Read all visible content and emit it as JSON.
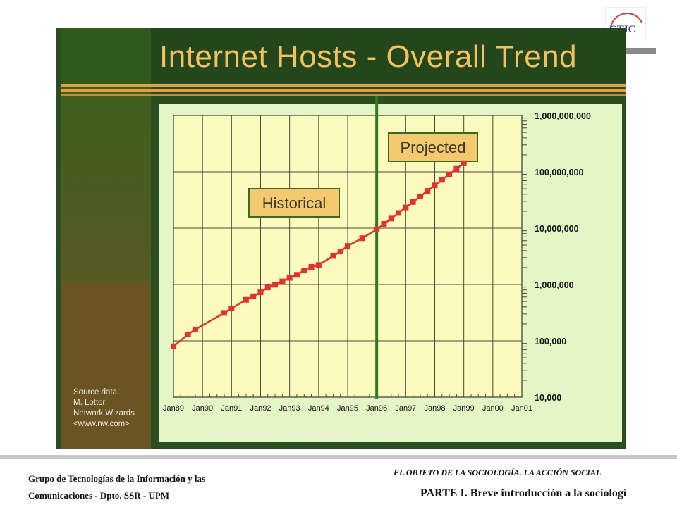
{
  "slide": {
    "title": "Internet Hosts - Overall Trend",
    "source_lines": [
      "Source data:",
      "M. Lottor",
      "Network Wizards",
      "<www.nw.com>"
    ],
    "credit": "A.M. Rutkowski  - General Magic, Inc. - Feb 1996"
  },
  "logo": {
    "text": "CTIC",
    "icon": "ctic-logo"
  },
  "footer": {
    "left_line1": "Grupo de Tecnologías de la Información y las",
    "left_line2": "Comunicaciones - Dpto. SSR - UPM",
    "right_top": "EL OBJETO DE LA SOCIOLOGÍA. LA ACCIÓN SOCIAL",
    "right_bottom": "PARTE I. Breve introducción a la sociologí"
  },
  "colors": {
    "title": "#f2c260",
    "plot_bg": "#fdfac0",
    "series": "#e53030",
    "divider": "#2f7a22",
    "label_bg": "#f5c970"
  },
  "chart_data": {
    "type": "line",
    "title": "Internet Hosts - Overall Trend",
    "xlabel": "",
    "ylabel": "",
    "y_scale": "log",
    "ylim": [
      10000,
      1000000000
    ],
    "xlim": [
      "1989-01",
      "2001-01"
    ],
    "x_tick_labels": [
      "Jan89",
      "Jan90",
      "Jan91",
      "Jan92",
      "Jan93",
      "Jan94",
      "Jan95",
      "Jan96",
      "Jan97",
      "Jan98",
      "Jan99",
      "Jan00",
      "Jan01"
    ],
    "y_tick_labels": [
      "10,000",
      "100,000",
      "1,000,000",
      "10,000,000",
      "100,000,000",
      "1,000,000,000"
    ],
    "grid": true,
    "annotations": [
      "Historical",
      "Projected"
    ],
    "divider_x": "1996-01",
    "series": [
      {
        "points": [
          {
            "x": "1989-01",
            "y": 80000
          },
          {
            "x": "1989-07",
            "y": 130000
          },
          {
            "x": "1989-10",
            "y": 159000
          },
          {
            "x": "1990-10",
            "y": 313000
          },
          {
            "x": "1991-01",
            "y": 376000
          },
          {
            "x": "1991-07",
            "y": 535000
          },
          {
            "x": "1991-10",
            "y": 617000
          },
          {
            "x": "1992-01",
            "y": 727000
          },
          {
            "x": "1992-04",
            "y": 890000
          },
          {
            "x": "1992-07",
            "y": 992000
          },
          {
            "x": "1992-10",
            "y": 1136000
          },
          {
            "x": "1993-01",
            "y": 1313000
          },
          {
            "x": "1993-04",
            "y": 1486000
          },
          {
            "x": "1993-07",
            "y": 1776000
          },
          {
            "x": "1993-10",
            "y": 2056000
          },
          {
            "x": "1994-01",
            "y": 2217000
          },
          {
            "x": "1994-07",
            "y": 3212000
          },
          {
            "x": "1994-10",
            "y": 3864000
          },
          {
            "x": "1995-01",
            "y": 4852000
          },
          {
            "x": "1995-07",
            "y": 6642000
          },
          {
            "x": "1996-01",
            "y": 9472000
          },
          {
            "x": "1996-04",
            "y": 11900000
          },
          {
            "x": "1996-07",
            "y": 14800000
          },
          {
            "x": "1996-10",
            "y": 18600000
          },
          {
            "x": "1997-01",
            "y": 23300000
          },
          {
            "x": "1997-04",
            "y": 29200000
          },
          {
            "x": "1997-07",
            "y": 36600000
          },
          {
            "x": "1997-10",
            "y": 45900000
          },
          {
            "x": "1998-01",
            "y": 57500000
          },
          {
            "x": "1998-04",
            "y": 72100000
          },
          {
            "x": "1998-07",
            "y": 90400000
          },
          {
            "x": "1998-10",
            "y": 113000000
          },
          {
            "x": "1999-01",
            "y": 142000000
          }
        ]
      }
    ]
  }
}
